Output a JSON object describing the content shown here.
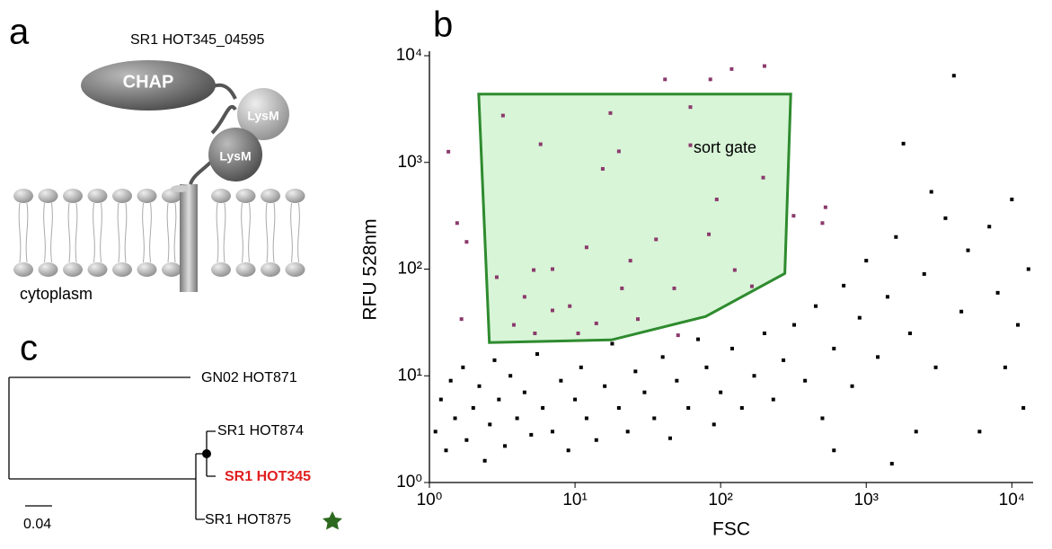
{
  "panels": {
    "a": "a",
    "b": "b",
    "c": "c"
  },
  "diagram": {
    "protein": "SR1 HOT345_04595",
    "domain1": "CHAP",
    "domain2": "LysM",
    "domain3": "LysM",
    "compartment": "cytoplasm"
  },
  "tree": {
    "leaves": [
      "GN02 HOT871",
      "SR1 HOT874",
      "SR1 HOT345",
      "SR1 HOT875"
    ],
    "scale": "0.04"
  },
  "chart_data": {
    "type": "scatter",
    "xlabel": "FSC",
    "ylabel": "RFU 528nm",
    "xlog": true,
    "ylog": true,
    "xlim": [
      1,
      14000
    ],
    "ylim": [
      1,
      10000
    ],
    "xticks": [
      {
        "value": 1,
        "label": "10⁰"
      },
      {
        "value": 10,
        "label": "10¹"
      },
      {
        "value": 100,
        "label": "10²"
      },
      {
        "value": 1000,
        "label": "10³"
      },
      {
        "value": 10000,
        "label": "10⁴"
      }
    ],
    "yticks": [
      {
        "value": 1,
        "label": "10⁰"
      },
      {
        "value": 10,
        "label": "10¹"
      },
      {
        "value": 100,
        "label": "10²"
      },
      {
        "value": 1000,
        "label": "10³"
      },
      {
        "value": 10000,
        "label": "10⁴"
      }
    ],
    "series": [
      {
        "color": "#000000",
        "x": [
          1.1,
          1.2,
          1.3,
          1.4,
          1.5,
          1.7,
          1.8,
          2,
          2.2,
          2.4,
          2.6,
          2.8,
          3,
          3.3,
          3.6,
          4,
          4.5,
          5,
          5.5,
          6,
          7,
          8,
          9,
          10,
          11,
          12,
          14,
          16,
          18,
          20,
          23,
          26,
          30,
          35,
          40,
          45,
          50,
          60,
          70,
          80,
          90,
          100,
          120,
          140,
          170,
          200,
          230,
          270,
          320,
          380,
          450,
          500,
          600,
          700,
          800,
          900,
          1000,
          1200,
          1400,
          1600,
          1800,
          2000,
          2500,
          2800,
          3000,
          3500,
          4000,
          4500,
          5000,
          6000,
          7000,
          8000,
          9000,
          10000,
          11000,
          12000,
          13000,
          2200,
          1500,
          600
        ],
        "values": [
          3,
          6,
          2,
          9,
          4,
          12,
          2.5,
          5,
          8,
          1.6,
          3.5,
          14,
          6,
          2.2,
          10,
          4,
          7,
          2.8,
          16,
          5,
          3,
          9,
          2,
          6,
          12,
          4,
          2.5,
          8,
          20,
          5,
          3,
          11,
          7,
          4,
          15,
          2.6,
          9,
          5,
          22,
          12,
          3.5,
          7,
          18,
          5,
          10,
          25,
          6,
          14,
          30,
          9,
          45,
          4,
          18,
          70,
          8,
          35,
          120,
          15,
          55,
          200,
          1500,
          25,
          90,
          530,
          12,
          300,
          6500,
          40,
          150,
          3,
          250,
          60,
          12,
          450,
          30,
          5,
          100,
          3,
          1.5,
          2
        ]
      },
      {
        "color": "#8b3a6b",
        "x": [
          1.35,
          1.55,
          1.8,
          1.66,
          3.2,
          5.8,
          17.5,
          20,
          15.5,
          41.5,
          85,
          119,
          200,
          62,
          62,
          196,
          94,
          317,
          525,
          500,
          2.9,
          12,
          36,
          5.2,
          7,
          4.5,
          9.2,
          21,
          48,
          125,
          27,
          14,
          5.3,
          51,
          164,
          7,
          3.8,
          24,
          83,
          10.5
        ],
        "values": [
          1260,
          270,
          180,
          34,
          2750,
          1480,
          2900,
          1270,
          870,
          6000,
          6000,
          7500,
          8000,
          3300,
          1450,
          720,
          450,
          316,
          380,
          270,
          84,
          160,
          190,
          98,
          100,
          55,
          45,
          66,
          66,
          98,
          34,
          31,
          25,
          24,
          69,
          41,
          30,
          120,
          212,
          25
        ]
      }
    ],
    "gate": {
      "label": "sort gate",
      "color": "#2e8b2e",
      "fill": "#d8f5d8",
      "x": [
        2.18,
        303,
        276,
        79,
        17.8,
        2.58
      ],
      "y": [
        4360,
        4360,
        91,
        36,
        21.7,
        20.5
      ]
    }
  }
}
